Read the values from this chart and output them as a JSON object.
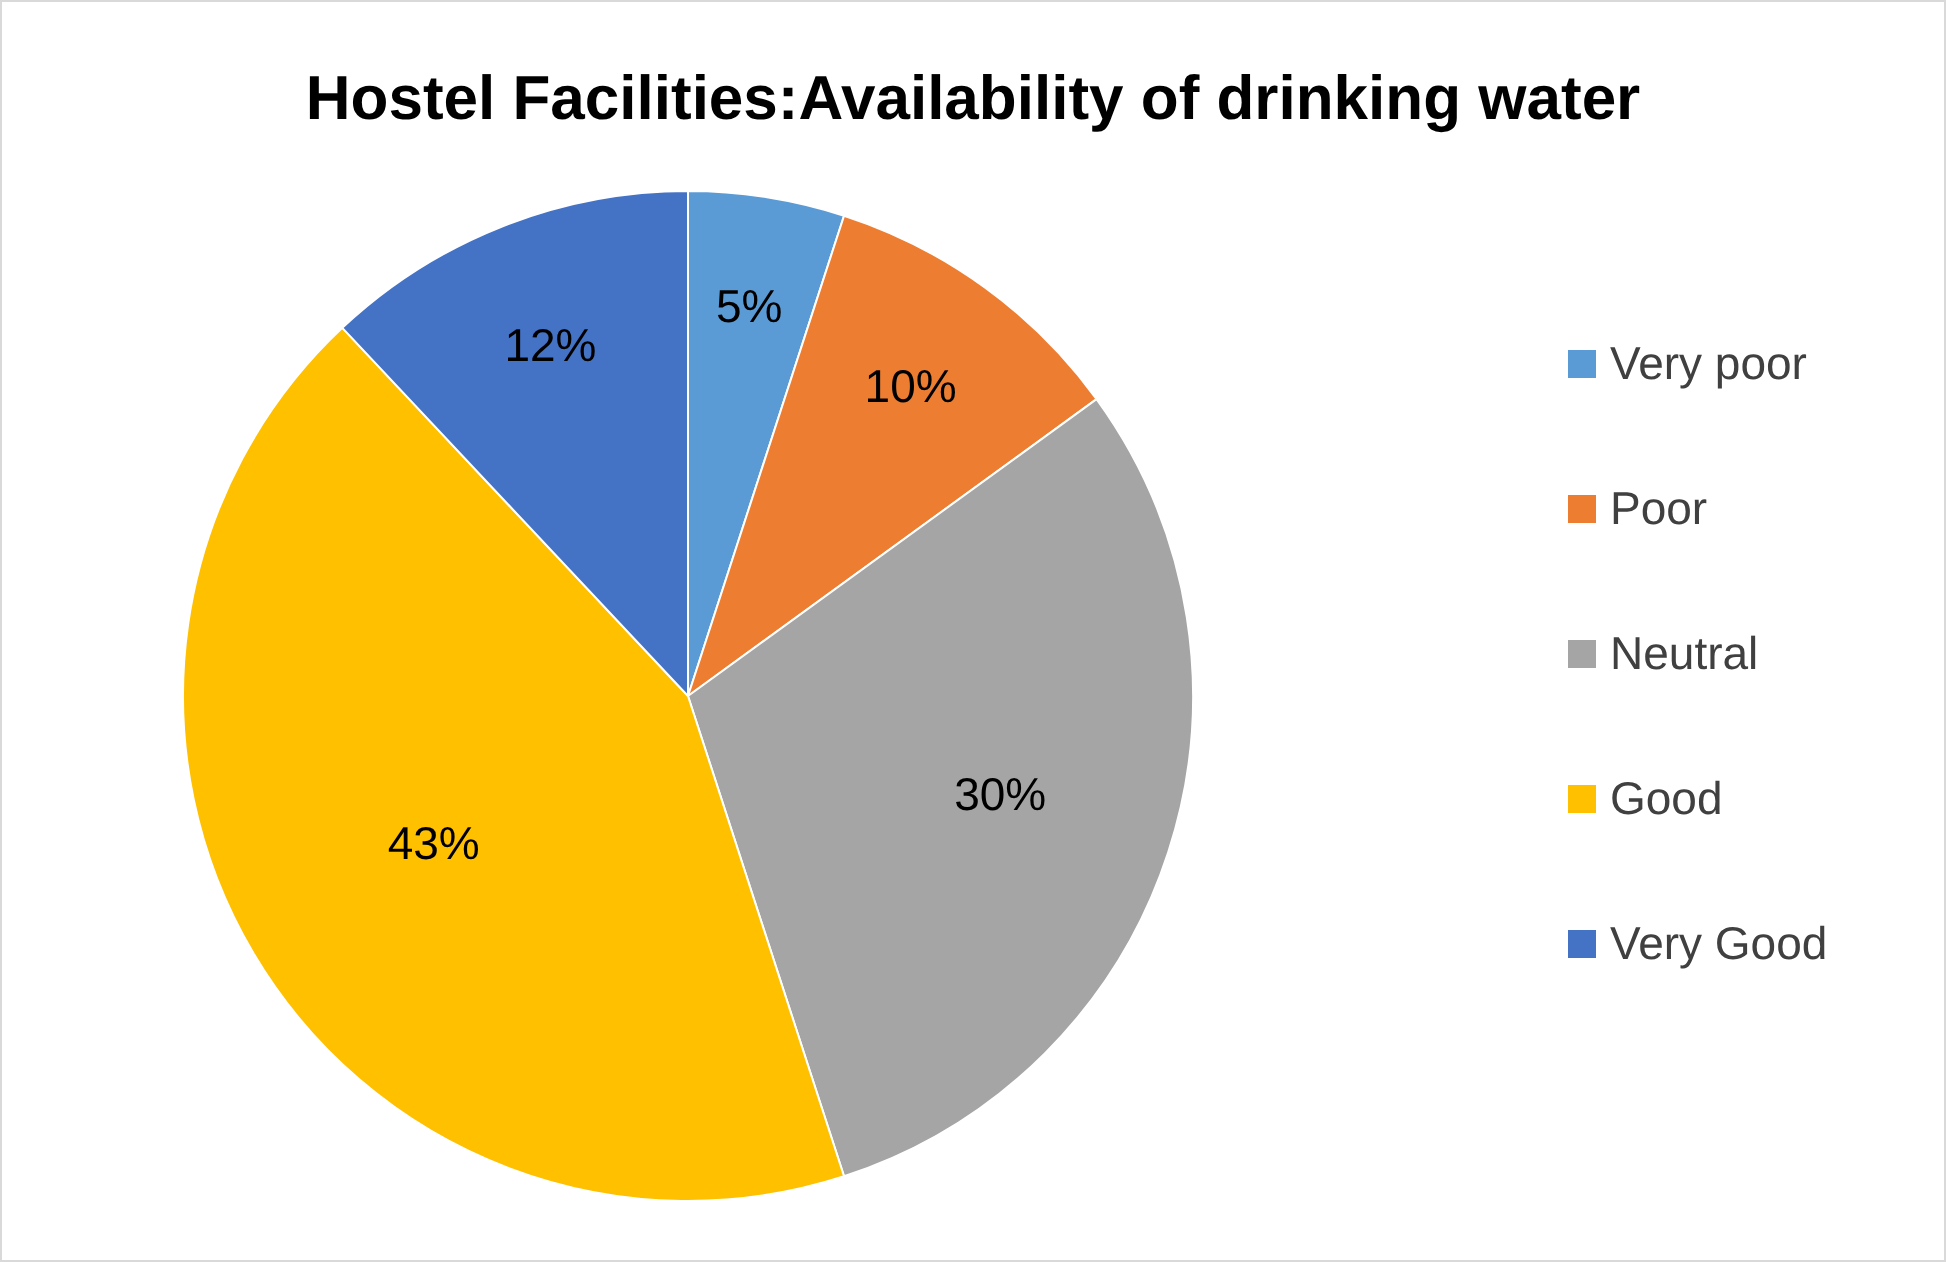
{
  "chart_data": {
    "type": "pie",
    "title": "Hostel Facilities:Availability of drinking water",
    "categories": [
      "Very poor",
      "Poor",
      "Neutral",
      "Good",
      "Very Good"
    ],
    "values": [
      5,
      10,
      30,
      43,
      12
    ],
    "colors": [
      "#5b9bd5",
      "#ed7d31",
      "#a5a5a5",
      "#ffc000",
      "#4472c4"
    ],
    "value_labels": [
      "5%",
      "10%",
      "30%",
      "43%",
      "12%"
    ],
    "legend": "right"
  }
}
